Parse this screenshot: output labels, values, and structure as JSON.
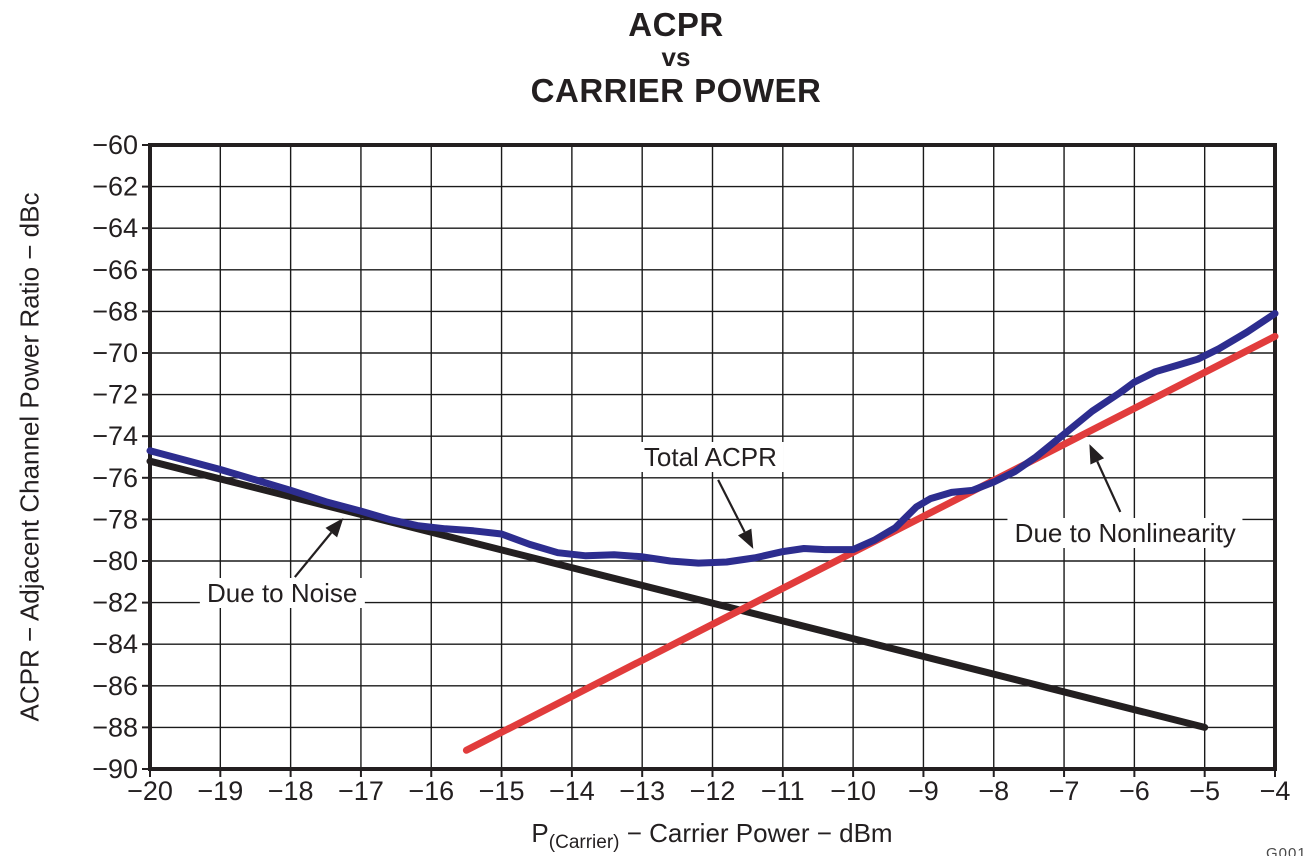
{
  "title": {
    "line1": "ACPR",
    "line2": "vs",
    "line3": "CARRIER POWER"
  },
  "figure_code": "G001",
  "colors": {
    "axis": "#231F20",
    "grid": "#1a1a1a",
    "text": "#231F20",
    "total_acpr": "#2D2D8F",
    "due_to_noise": "#231F20",
    "due_to_nonlinearity": "#E13C3C"
  },
  "chart_data": {
    "type": "line",
    "title": "ACPR vs CARRIER POWER",
    "xlabel": "P(Carrier) − Carrier Power − dBm",
    "xlabel_parts": {
      "pre": "P",
      "sub": "(Carrier)",
      "post": " − Carrier Power − dBm"
    },
    "ylabel": "ACPR − Adjacent Channel Power Ratio − dBc",
    "xlim": [
      -20,
      -4
    ],
    "ylim": [
      -90,
      -60
    ],
    "x_ticks": [
      -20,
      -19,
      -18,
      -17,
      -16,
      -15,
      -14,
      -13,
      -12,
      -11,
      -10,
      -9,
      -8,
      -7,
      -6,
      -5,
      -4
    ],
    "y_ticks": [
      -60,
      -62,
      -64,
      -66,
      -68,
      -70,
      -72,
      -74,
      -76,
      -78,
      -80,
      -82,
      -84,
      -86,
      -88,
      -90
    ],
    "grid": true,
    "legend": "none",
    "series": [
      {
        "name": "Due to Noise",
        "color": "#231F20",
        "points": [
          [
            -20,
            -75.2
          ],
          [
            -5,
            -88.0
          ]
        ]
      },
      {
        "name": "Due to Nonlinearity",
        "color": "#E13C3C",
        "points": [
          [
            -15.5,
            -89.1
          ],
          [
            -4,
            -69.2
          ]
        ]
      },
      {
        "name": "Total ACPR",
        "color": "#2D2D8F",
        "points": [
          [
            -20,
            -74.7
          ],
          [
            -19.5,
            -75.15
          ],
          [
            -19,
            -75.6
          ],
          [
            -18.5,
            -76.1
          ],
          [
            -18,
            -76.6
          ],
          [
            -17.5,
            -77.15
          ],
          [
            -17,
            -77.6
          ],
          [
            -16.6,
            -78.0
          ],
          [
            -16.2,
            -78.3
          ],
          [
            -15.8,
            -78.45
          ],
          [
            -15.4,
            -78.55
          ],
          [
            -15,
            -78.7
          ],
          [
            -14.6,
            -79.2
          ],
          [
            -14.2,
            -79.6
          ],
          [
            -13.8,
            -79.75
          ],
          [
            -13.4,
            -79.7
          ],
          [
            -13,
            -79.8
          ],
          [
            -12.6,
            -80.0
          ],
          [
            -12.2,
            -80.1
          ],
          [
            -11.8,
            -80.05
          ],
          [
            -11.4,
            -79.85
          ],
          [
            -11,
            -79.55
          ],
          [
            -10.7,
            -79.4
          ],
          [
            -10.4,
            -79.45
          ],
          [
            -10,
            -79.45
          ],
          [
            -9.7,
            -79.0
          ],
          [
            -9.4,
            -78.4
          ],
          [
            -9.1,
            -77.4
          ],
          [
            -8.9,
            -77.0
          ],
          [
            -8.6,
            -76.7
          ],
          [
            -8.3,
            -76.6
          ],
          [
            -8,
            -76.2
          ],
          [
            -7.7,
            -75.7
          ],
          [
            -7.4,
            -75.0
          ],
          [
            -7,
            -73.9
          ],
          [
            -6.6,
            -72.8
          ],
          [
            -6.2,
            -71.9
          ],
          [
            -6,
            -71.4
          ],
          [
            -5.7,
            -70.9
          ],
          [
            -5.4,
            -70.6
          ],
          [
            -5.1,
            -70.3
          ],
          [
            -4.8,
            -69.8
          ],
          [
            -4.4,
            -69.0
          ],
          [
            -4,
            -68.1
          ]
        ]
      }
    ],
    "annotations": [
      {
        "label": "Total ACPR",
        "text_at": [
          -12.03,
          -75.0
        ],
        "arrow_from": [
          -11.92,
          -76.1
        ],
        "arrow_to": [
          -11.42,
          -79.42
        ]
      },
      {
        "label": "Due to Noise",
        "text_at": [
          -18.12,
          -81.54
        ],
        "arrow_from": [
          -17.94,
          -80.77
        ],
        "arrow_to": [
          -17.25,
          -77.93
        ]
      },
      {
        "label": "Due to Nonlinearity",
        "text_at": [
          -6.13,
          -78.65
        ],
        "arrow_from": [
          -6.2,
          -77.64
        ],
        "arrow_to": [
          -6.64,
          -74.38
        ]
      }
    ]
  }
}
